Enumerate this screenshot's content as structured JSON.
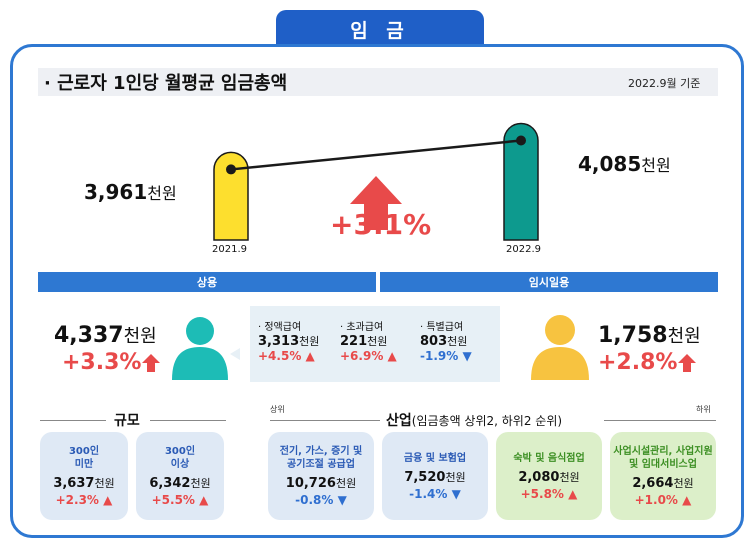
{
  "tab_title": "임 금",
  "section_title": "· 근로자 1인당 월평균 임금총액",
  "reference_date": "2022.9월 기준",
  "colors": {
    "accent": "#1f5fc7",
    "frame": "#2e78d2",
    "band": "#2e78d2",
    "red": "#e84a4a",
    "blue": "#2f6fd0",
    "yellow": "#fddf2e",
    "teal": "#0d9a8e",
    "person_teal": "#1dbcb6",
    "person_yellow": "#f7c340"
  },
  "overall": {
    "value_2021": "3,961",
    "unit": "천원",
    "value_2022": "4,085",
    "label_2021": "2021.9",
    "label_2022": "2022.9",
    "change": "+3.1%"
  },
  "chart_data": {
    "type": "bar",
    "categories": [
      "2021.9",
      "2022.9"
    ],
    "values": [
      3961,
      4085
    ],
    "ylabel": "천원",
    "ylim": [
      3800,
      4100
    ]
  },
  "bands": {
    "regular": "상용",
    "temporary": "임시일용"
  },
  "regular": {
    "value": "4,337",
    "unit": "천원",
    "change": "+3.3%",
    "components": [
      {
        "label": "· 정액급여",
        "value": "3,313",
        "unit": "천원",
        "change": "+4.5%",
        "dir": "up"
      },
      {
        "label": "· 초과급여",
        "value": "221",
        "unit": "천원",
        "change": "+6.9%",
        "dir": "up"
      },
      {
        "label": "· 특별급여",
        "value": "803",
        "unit": "천원",
        "change": "-1.9%",
        "dir": "down"
      }
    ]
  },
  "temporary": {
    "value": "1,758",
    "unit": "천원",
    "change": "+2.8%"
  },
  "scale": {
    "title": "규모",
    "tiles": [
      {
        "label1": "300인",
        "label2": "미만",
        "value": "3,637",
        "unit": "천원",
        "change": "+2.3%"
      },
      {
        "label1": "300인",
        "label2": "이상",
        "value": "6,342",
        "unit": "천원",
        "change": "+5.5%"
      }
    ]
  },
  "industry": {
    "title": "산업",
    "subtitle": "(임금총액 상위2, 하위2 순위)",
    "top_tag": "상위",
    "bottom_tag": "하위",
    "tiles": [
      {
        "label1": "전기, 가스, 증기 및",
        "label2": "공기조절 공급업",
        "value": "10,726",
        "unit": "천원",
        "change": "-0.8%",
        "dir": "down"
      },
      {
        "label1": "금융 및 보험업",
        "label2": "",
        "value": "7,520",
        "unit": "천원",
        "change": "-1.4%",
        "dir": "down"
      },
      {
        "label1": "숙박 및 음식점업",
        "label2": "",
        "value": "2,080",
        "unit": "천원",
        "change": "+5.8%",
        "dir": "up"
      },
      {
        "label1": "사업시설관리, 사업지원",
        "label2": "및 임대서비스업",
        "value": "2,664",
        "unit": "천원",
        "change": "+1.0%",
        "dir": "up"
      }
    ]
  }
}
